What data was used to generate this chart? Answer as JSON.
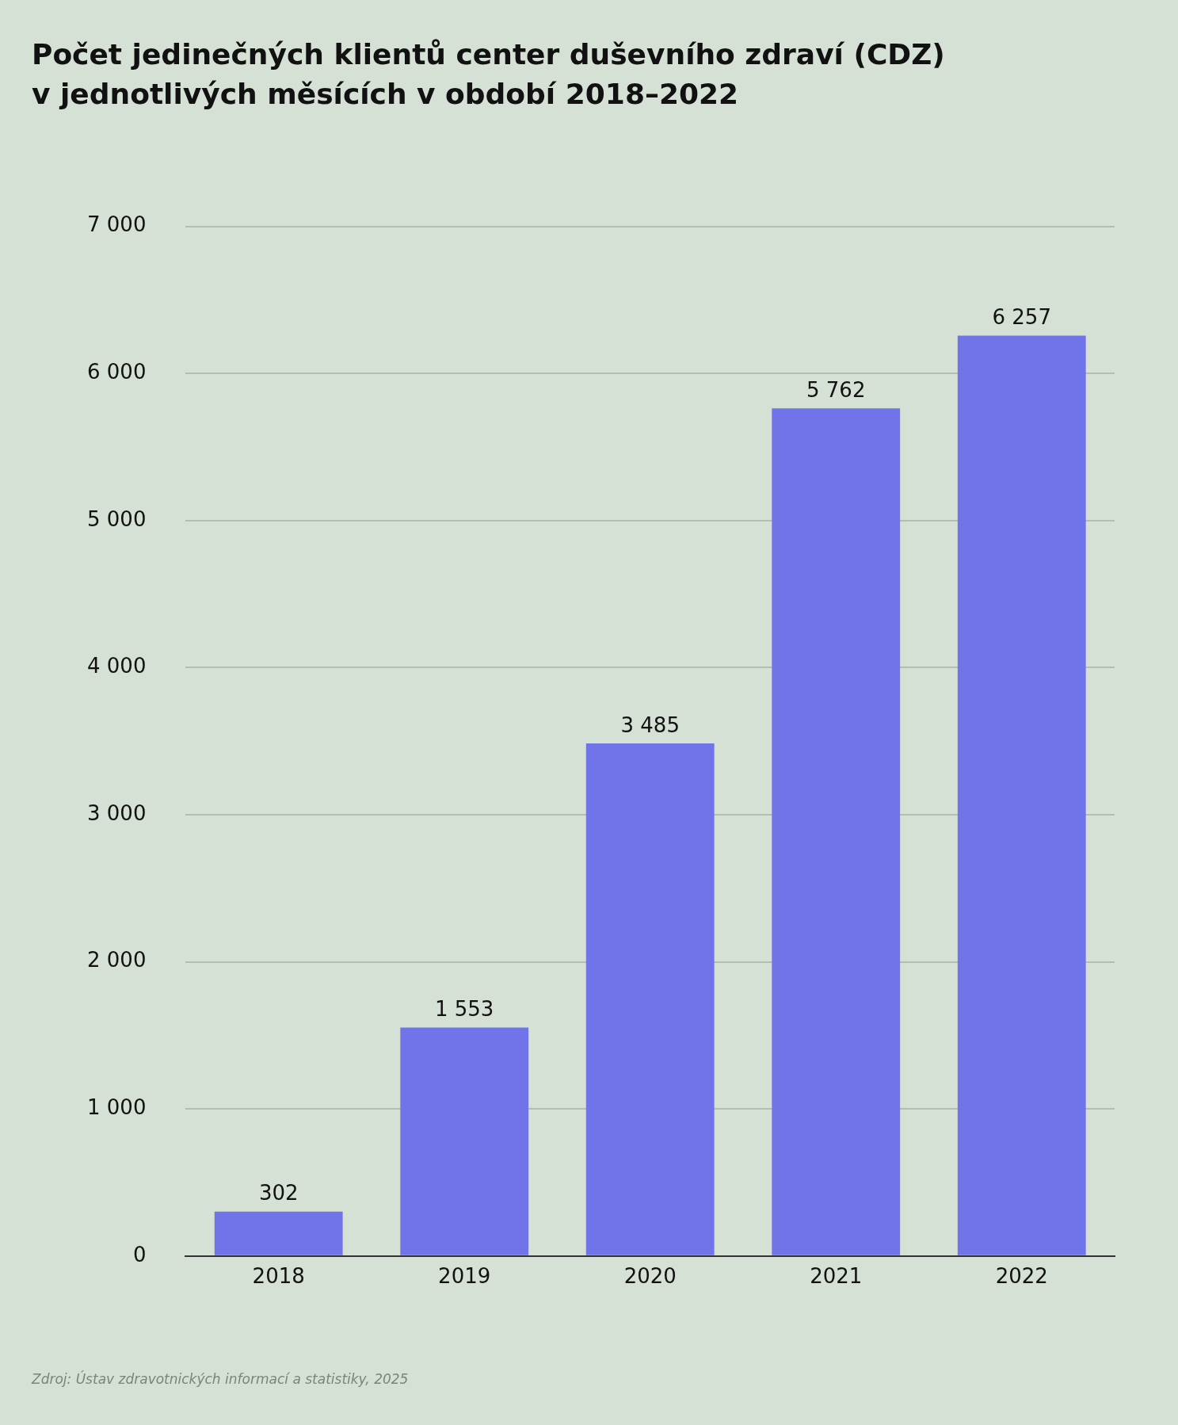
{
  "chart_data": {
    "type": "bar",
    "title": "Počet jedinečných klientů center duševního zdraví (CDZ)\nv jednotlivých měsících v období 2018–2022",
    "categories": [
      "2018",
      "2019",
      "2020",
      "2021",
      "2022"
    ],
    "values": [
      302,
      1553,
      3485,
      5762,
      6257
    ],
    "value_labels": [
      "302",
      "1 553",
      "3 485",
      "5 762",
      "6 257"
    ],
    "color": "#7174e8",
    "ylim": [
      0,
      7000
    ],
    "yticks": [
      {
        "value": 0,
        "label": "0"
      },
      {
        "value": 1000,
        "label": "1 000"
      },
      {
        "value": 2000,
        "label": "2 000"
      },
      {
        "value": 3000,
        "label": "3 000"
      },
      {
        "value": 4000,
        "label": "4 000"
      },
      {
        "value": 5000,
        "label": "5 000"
      },
      {
        "value": 6000,
        "label": "6 000"
      },
      {
        "value": 7000,
        "label": "7 000"
      }
    ],
    "grid": "y",
    "annotations": [
      "Zdroj: Ústav zdravotnických informací a statistiky, 2025"
    ]
  }
}
